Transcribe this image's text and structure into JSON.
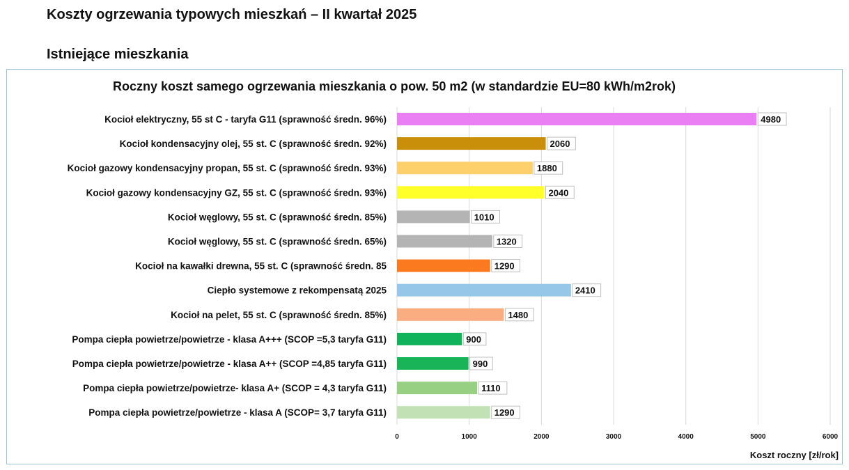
{
  "page": {
    "title": "Koszty ogrzewania typowych mieszkań – II kwartał 2025",
    "section": "Istniejące mieszkania"
  },
  "chart_data": {
    "type": "bar",
    "orientation": "horizontal",
    "title": "Roczny koszt samego ogrzewania mieszkania o pow. 50 m2 (w standardzie  EU=80 kWh/m2rok)",
    "xlabel": "Koszt roczny [zł/rok]",
    "ylabel": "",
    "xlim": [
      0,
      6000
    ],
    "xticks": [
      0,
      1000,
      2000,
      3000,
      4000,
      5000,
      6000
    ],
    "grid": true,
    "categories": [
      "Kocioł  elektryczny, 55 st C -  taryfa G11 (sprawność średn. 96%)",
      "Kocioł  kondensacyjny olej, 55 st. C (sprawność średn. 92%)",
      "Kocioł gazowy kondensacyjny propan, 55 st. C (sprawność średn. 93%)",
      "Kocioł gazowy kondensacyjny GZ, 55 st. C (sprawność średn. 93%)",
      "Kocioł węglowy,  55 st. C (sprawność średn. 85%)",
      "Kocioł węglowy, 55 st. C (sprawność średn. 65%)",
      "Kocioł na kawałki drewna, 55 st. C (sprawność średn. 85",
      "Ciepło systemowe z rekompensatą 2025",
      "Kocioł na pelet, 55 st. C (sprawność średn. 85%)",
      "Pompa ciepła powietrze/powietrze -  klasa A+++ (SCOP =5,3 taryfa G11)",
      "Pompa ciepła powietrze/powietrze - klasa A++ (SCOP =4,85 taryfa G11)",
      "Pompa ciepła powietrze/powietrze-  klasa A+ (SCOP = 4,3 taryfa G11)",
      "Pompa ciepła powietrze/powietrze - klasa A (SCOP= 3,7 taryfa G11)"
    ],
    "values": [
      4980,
      2060,
      1880,
      2040,
      1010,
      1320,
      1290,
      2410,
      1480,
      900,
      990,
      1110,
      1290
    ],
    "colors": [
      "#e97ff2",
      "#c98f0b",
      "#fdd06b",
      "#ffff2a",
      "#b4b4b4",
      "#b4b4b4",
      "#fb7a1f",
      "#96c6e8",
      "#fbad82",
      "#11b35a",
      "#19b358",
      "#98d083",
      "#c2e2b6"
    ]
  }
}
